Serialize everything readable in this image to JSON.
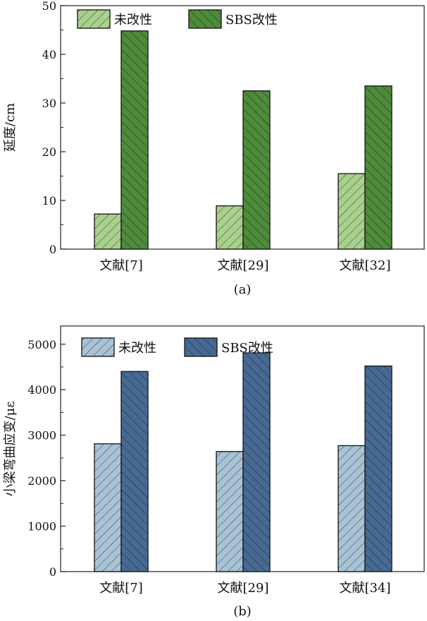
{
  "colors": {
    "a_unmodified": "#a9d18e",
    "a_sbs": "#4e8b3a",
    "b_unmodified": "#a9c3d6",
    "b_sbs": "#476a94"
  },
  "chart_data": [
    {
      "type": "bar",
      "caption": "(a)",
      "ylabel": "延度/cm",
      "xlabel": "",
      "ylim": [
        0,
        50
      ],
      "yticks": [
        0,
        10,
        20,
        30,
        40,
        50
      ],
      "categories": [
        "文献[7]",
        "文献[29]",
        "文献[32]"
      ],
      "series": [
        {
          "name": "未改性",
          "values": [
            7.2,
            8.9,
            15.5
          ],
          "pattern": "up"
        },
        {
          "name": "SBS改性",
          "values": [
            44.8,
            32.5,
            33.5
          ],
          "pattern": "down"
        }
      ],
      "legend": "top-left",
      "grid": false
    },
    {
      "type": "bar",
      "caption": "(b)",
      "ylabel": "小梁弯曲应变/με",
      "xlabel": "",
      "ylim": [
        0,
        5400
      ],
      "yticks": [
        0,
        1000,
        2000,
        3000,
        4000,
        5000
      ],
      "categories": [
        "文献[7]",
        "文献[29]",
        "文献[34]"
      ],
      "series": [
        {
          "name": "未改性",
          "values": [
            2810,
            2640,
            2770
          ],
          "pattern": "up"
        },
        {
          "name": "SBS改性",
          "values": [
            4400,
            4810,
            4520
          ],
          "pattern": "down"
        }
      ],
      "legend": "top-left",
      "grid": false
    }
  ]
}
